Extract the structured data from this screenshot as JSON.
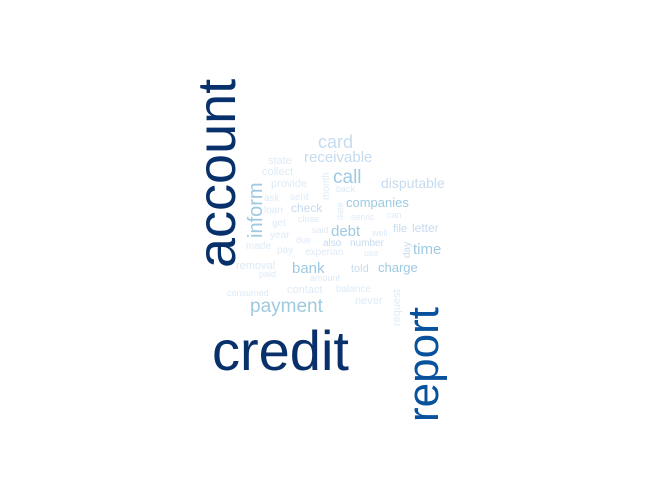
{
  "chart_data": {
    "type": "wordcloud",
    "colors": {
      "c1": "#08306b",
      "c2": "#08519c",
      "c3": "#6baed6",
      "c4": "#9ecae1",
      "c5": "#c6dbef",
      "c6": "#deebf7"
    },
    "words": [
      {
        "text": "credit",
        "weight": 100,
        "color": "#08306b",
        "vertical": false
      },
      {
        "text": "account",
        "weight": 96,
        "color": "#08306b",
        "vertical": true
      },
      {
        "text": "report",
        "weight": 80,
        "color": "#08519c",
        "vertical": true
      },
      {
        "text": "payment",
        "weight": 30,
        "color": "#9ecae1",
        "vertical": false
      },
      {
        "text": "inform",
        "weight": 29,
        "color": "#9ecae1",
        "vertical": true
      },
      {
        "text": "call",
        "weight": 26,
        "color": "#9ecae1",
        "vertical": false
      },
      {
        "text": "card",
        "weight": 24,
        "color": "#c6dbef",
        "vertical": false
      },
      {
        "text": "receivable",
        "weight": 20,
        "color": "#c6dbef",
        "vertical": false
      },
      {
        "text": "bank",
        "weight": 20,
        "color": "#9ecae1",
        "vertical": false
      },
      {
        "text": "debt",
        "weight": 20,
        "color": "#9ecae1",
        "vertical": false
      },
      {
        "text": "time",
        "weight": 19,
        "color": "#9ecae1",
        "vertical": false
      },
      {
        "text": "disputable",
        "weight": 16,
        "color": "#c6dbef",
        "vertical": false
      },
      {
        "text": "companies",
        "weight": 15,
        "color": "#9ecae1",
        "vertical": false
      },
      {
        "text": "charge",
        "weight": 15,
        "color": "#9ecae1",
        "vertical": false
      },
      {
        "text": "letter",
        "weight": 13,
        "color": "#c6dbef",
        "vertical": false
      },
      {
        "text": "file",
        "weight": 12,
        "color": "#c6dbef",
        "vertical": false
      },
      {
        "text": "check",
        "weight": 12,
        "color": "#c6dbef",
        "vertical": false
      },
      {
        "text": "request",
        "weight": 12,
        "color": "#deebf7",
        "vertical": true
      },
      {
        "text": "told",
        "weight": 12,
        "color": "#c6dbef",
        "vertical": false
      },
      {
        "text": "never",
        "weight": 11,
        "color": "#deebf7",
        "vertical": false
      },
      {
        "text": "contact",
        "weight": 11,
        "color": "#deebf7",
        "vertical": false
      },
      {
        "text": "removal",
        "weight": 11,
        "color": "#deebf7",
        "vertical": false
      },
      {
        "text": "state",
        "weight": 11,
        "color": "#deebf7",
        "vertical": false
      },
      {
        "text": "collect",
        "weight": 11,
        "color": "#deebf7",
        "vertical": false
      },
      {
        "text": "provide",
        "weight": 11,
        "color": "#deebf7",
        "vertical": false
      },
      {
        "text": "also",
        "weight": 11,
        "color": "#c6dbef",
        "vertical": false
      },
      {
        "text": "number",
        "weight": 11,
        "color": "#c6dbef",
        "vertical": false
      },
      {
        "text": "day",
        "weight": 11,
        "color": "#c6dbef",
        "vertical": true
      },
      {
        "text": "month",
        "weight": 10,
        "color": "#deebf7",
        "vertical": true
      },
      {
        "text": "sent",
        "weight": 10,
        "color": "#deebf7",
        "vertical": false
      },
      {
        "text": "ask",
        "weight": 10,
        "color": "#deebf7",
        "vertical": false
      },
      {
        "text": "loan",
        "weight": 10,
        "color": "#deebf7",
        "vertical": false
      },
      {
        "text": "get",
        "weight": 10,
        "color": "#deebf7",
        "vertical": false
      },
      {
        "text": "year",
        "weight": 10,
        "color": "#deebf7",
        "vertical": false
      },
      {
        "text": "pay",
        "weight": 10,
        "color": "#deebf7",
        "vertical": false
      },
      {
        "text": "made",
        "weight": 10,
        "color": "#deebf7",
        "vertical": false
      },
      {
        "text": "experian",
        "weight": 10,
        "color": "#deebf7",
        "vertical": false
      },
      {
        "text": "balance",
        "weight": 10,
        "color": "#deebf7",
        "vertical": false
      },
      {
        "text": "servic",
        "weight": 9,
        "color": "#deebf7",
        "vertical": false
      },
      {
        "text": "can",
        "weight": 9,
        "color": "#deebf7",
        "vertical": false
      },
      {
        "text": "date",
        "weight": 9,
        "color": "#deebf7",
        "vertical": true
      },
      {
        "text": "close",
        "weight": 9,
        "color": "#deebf7",
        "vertical": false
      },
      {
        "text": "said",
        "weight": 9,
        "color": "#deebf7",
        "vertical": false
      },
      {
        "text": "due",
        "weight": 9,
        "color": "#deebf7",
        "vertical": false
      },
      {
        "text": "well",
        "weight": 9,
        "color": "#deebf7",
        "vertical": false
      },
      {
        "text": "use",
        "weight": 9,
        "color": "#deebf7",
        "vertical": false
      },
      {
        "text": "back",
        "weight": 9,
        "color": "#deebf7",
        "vertical": false
      },
      {
        "text": "amount",
        "weight": 9,
        "color": "#deebf7",
        "vertical": false
      },
      {
        "text": "paid",
        "weight": 9,
        "color": "#deebf7",
        "vertical": false
      },
      {
        "text": "consumed",
        "weight": 9,
        "color": "#deebf7",
        "vertical": false
      }
    ]
  }
}
